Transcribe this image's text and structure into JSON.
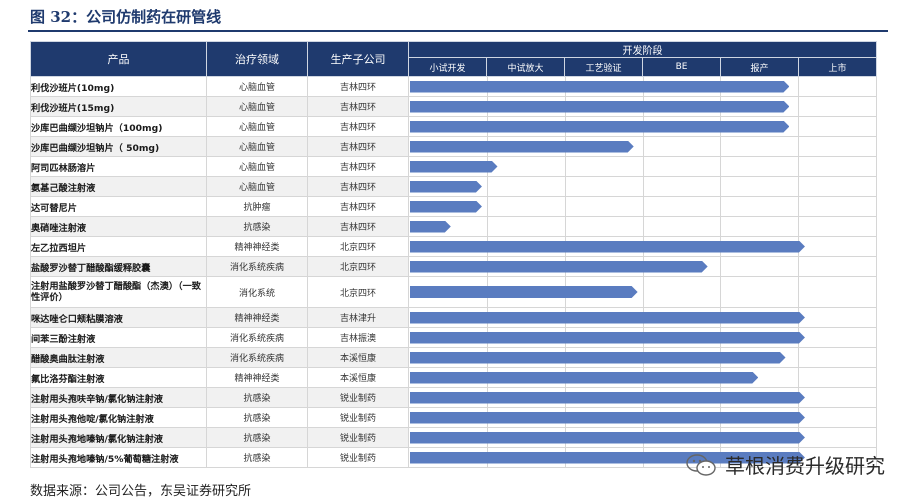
{
  "title": "图 32：公司仿制药在研管线",
  "source": "数据来源：公司公告，东吴证券研究所",
  "watermark": "草根消费升级研究",
  "colors": {
    "header": "#1f3a6e",
    "bar": "#5a7cc0"
  },
  "headers": {
    "product": "产品",
    "area": "治疗领域",
    "subsidiary": "生产子公司",
    "stage": "开发阶段",
    "phases": [
      "小试开发",
      "中试放大",
      "工艺验证",
      "BE",
      "报产",
      "上市"
    ]
  },
  "rows": [
    {
      "product": "利伐沙班片(10mg)",
      "area": "心脑血管",
      "subsidiary": "吉林四环",
      "progress": 4.9
    },
    {
      "product": "利伐沙班片(15mg)",
      "area": "心脑血管",
      "subsidiary": "吉林四环",
      "progress": 4.9
    },
    {
      "product": "沙库巴曲缬沙坦钠片（100mg)",
      "area": "心脑血管",
      "subsidiary": "吉林四环",
      "progress": 4.9
    },
    {
      "product": "沙库巴曲缬沙坦钠片（ 50mg)",
      "area": "心脑血管",
      "subsidiary": "吉林四环",
      "progress": 2.9
    },
    {
      "product": "阿司匹林肠溶片",
      "area": "心脑血管",
      "subsidiary": "吉林四环",
      "progress": 1.15
    },
    {
      "product": "氨基己酸注射液",
      "area": "心脑血管",
      "subsidiary": "吉林四环",
      "progress": 0.95
    },
    {
      "product": "达可替尼片",
      "area": "抗肿瘤",
      "subsidiary": "吉林四环",
      "progress": 0.95
    },
    {
      "product": "奥硝唑注射液",
      "area": "抗感染",
      "subsidiary": "吉林四环",
      "progress": 0.55
    },
    {
      "product": "左乙拉西坦片",
      "area": "精神神经类",
      "subsidiary": "北京四环",
      "progress": 5.1
    },
    {
      "product": "盐酸罗沙替丁醋酸酯缓释胶囊",
      "area": "消化系统疾病",
      "subsidiary": "北京四环",
      "progress": 3.85
    },
    {
      "product": "注射用盐酸罗沙替丁醋酸酯（杰澳）（一致性评价）",
      "area": "消化系统",
      "subsidiary": "北京四环",
      "progress": 2.95,
      "tall": true
    },
    {
      "product": "咪达唑仑口颊粘膜溶液",
      "area": "精神神经类",
      "subsidiary": "吉林津升",
      "progress": 5.1
    },
    {
      "product": "间苯三酚注射液",
      "area": "消化系统疾病",
      "subsidiary": "吉林振澳",
      "progress": 5.1
    },
    {
      "product": "醋酸奥曲肽注射液",
      "area": "消化系统疾病",
      "subsidiary": "本溪恒康",
      "progress": 4.85
    },
    {
      "product": "氟比洛芬酯注射液",
      "area": "精神神经类",
      "subsidiary": "本溪恒康",
      "progress": 4.5
    },
    {
      "product": "注射用头孢呋辛钠/氯化钠注射液",
      "area": "抗感染",
      "subsidiary": "锐业制药",
      "progress": 5.1
    },
    {
      "product": "注射用头孢他啶/氯化钠注射液",
      "area": "抗感染",
      "subsidiary": "锐业制药",
      "progress": 5.1
    },
    {
      "product": "注射用头孢地嗪钠/氯化钠注射液",
      "area": "抗感染",
      "subsidiary": "锐业制药",
      "progress": 5.1
    },
    {
      "product": "注射用头孢地嗪钠/5%葡萄糖注射液",
      "area": "抗感染",
      "subsidiary": "锐业制药",
      "progress": 5.1
    }
  ]
}
